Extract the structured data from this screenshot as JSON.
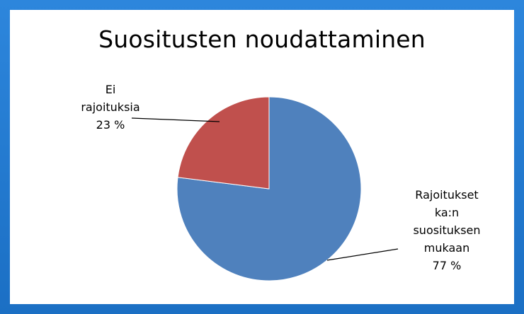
{
  "chart_data": {
    "type": "pie",
    "title": "Suositusten noudattaminen",
    "slices": [
      {
        "label_lines": [
          "Rajoitukset",
          "ka:n",
          "suosituksen",
          "mukaan"
        ],
        "value_label": "77 %",
        "value": 77,
        "color": "#4f81bd"
      },
      {
        "label_lines": [
          "Ei",
          "rajoituksia"
        ],
        "value_label": "23 %",
        "value": 23,
        "color": "#c0504d"
      }
    ],
    "legend": "none",
    "data_labels": "outside-with-leader-lines"
  }
}
